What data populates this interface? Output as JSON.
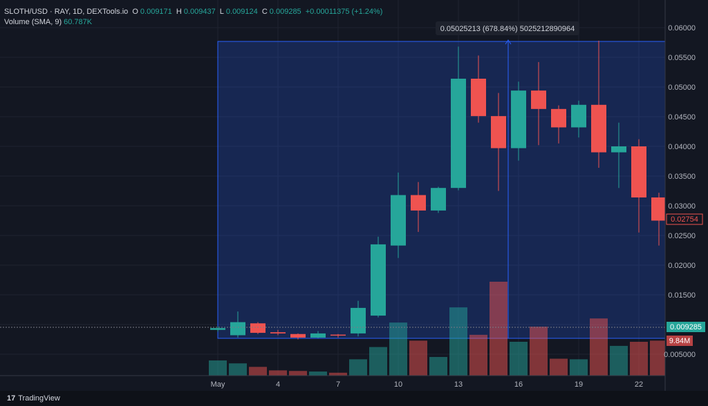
{
  "header": {
    "symbol": "SLOTH/USD",
    "details": "· RAY, 1D, DEXTools.io",
    "o_label": "O",
    "o_value": "0.009171",
    "h_label": "H",
    "h_value": "0.009437",
    "l_label": "L",
    "l_value": "0.009124",
    "c_label": "C",
    "c_value": "0.009285",
    "change": "+0.00011375 (+1.24%)",
    "volume_label": "Volume (SMA, 9)",
    "volume_value": "60.787K"
  },
  "footer": {
    "brand": "TradingView",
    "logo_text": "17"
  },
  "measure": {
    "label": "0.05025213 (678.84%) 5025212890964"
  },
  "price_tags": {
    "last": "0.009285",
    "prev": "0.02754",
    "volume": "9.84M"
  },
  "colors": {
    "up": "#26a69a",
    "down": "#ef5350",
    "bg": "#131722",
    "measure": "#2962ff"
  },
  "chart_data": {
    "type": "candlestick",
    "y_ticks": [
      "0.06000",
      "0.05500",
      "0.05000",
      "0.04500",
      "0.04000",
      "0.03500",
      "0.03000",
      "0.02500",
      "0.02000",
      "0.01500",
      "0.01000",
      "0.005000"
    ],
    "x_ticks": [
      "May",
      "4",
      "7",
      "10",
      "13",
      "16",
      "19",
      "22"
    ],
    "ylim": [
      0,
      0.062
    ],
    "candles": [
      {
        "o": 0.0091,
        "h": 0.0097,
        "l": 0.0088,
        "c": 0.0094
      },
      {
        "o": 0.0082,
        "h": 0.0122,
        "l": 0.0078,
        "c": 0.0104
      },
      {
        "o": 0.0102,
        "h": 0.0104,
        "l": 0.0084,
        "c": 0.0086
      },
      {
        "o": 0.0087,
        "h": 0.0091,
        "l": 0.0082,
        "c": 0.0085
      },
      {
        "o": 0.0084,
        "h": 0.0085,
        "l": 0.0075,
        "c": 0.0078
      },
      {
        "o": 0.0078,
        "h": 0.0089,
        "l": 0.0077,
        "c": 0.0085
      },
      {
        "o": 0.0083,
        "h": 0.0084,
        "l": 0.0078,
        "c": 0.0082
      },
      {
        "o": 0.0085,
        "h": 0.014,
        "l": 0.008,
        "c": 0.0128
      },
      {
        "o": 0.0115,
        "h": 0.0248,
        "l": 0.0112,
        "c": 0.0235
      },
      {
        "o": 0.0233,
        "h": 0.0356,
        "l": 0.0212,
        "c": 0.0318
      },
      {
        "o": 0.0318,
        "h": 0.034,
        "l": 0.0256,
        "c": 0.0292
      },
      {
        "o": 0.0292,
        "h": 0.0332,
        "l": 0.0288,
        "c": 0.033
      },
      {
        "o": 0.033,
        "h": 0.0568,
        "l": 0.0326,
        "c": 0.0514
      },
      {
        "o": 0.0514,
        "h": 0.0553,
        "l": 0.044,
        "c": 0.0451
      },
      {
        "o": 0.0451,
        "h": 0.049,
        "l": 0.0325,
        "c": 0.0397
      },
      {
        "o": 0.0397,
        "h": 0.0509,
        "l": 0.0376,
        "c": 0.0494
      },
      {
        "o": 0.0494,
        "h": 0.0542,
        "l": 0.0402,
        "c": 0.0463
      },
      {
        "o": 0.0463,
        "h": 0.0469,
        "l": 0.0405,
        "c": 0.0432
      },
      {
        "o": 0.0432,
        "h": 0.0477,
        "l": 0.0415,
        "c": 0.047
      },
      {
        "o": 0.047,
        "h": 0.0578,
        "l": 0.0364,
        "c": 0.039
      },
      {
        "o": 0.039,
        "h": 0.044,
        "l": 0.033,
        "c": 0.04
      },
      {
        "o": 0.04,
        "h": 0.0412,
        "l": 0.0255,
        "c": 0.0314
      },
      {
        "o": 0.0314,
        "h": 0.0322,
        "l": 0.0233,
        "c": 0.0275
      }
    ],
    "volumes": [
      26,
      21,
      15,
      9,
      8,
      7,
      5,
      28,
      49,
      91,
      60,
      32,
      117,
      70,
      161,
      58,
      84,
      29,
      28,
      98,
      51,
      58,
      60
    ],
    "volume_dir": [
      "up",
      "up",
      "down",
      "down",
      "down",
      "up",
      "down",
      "up",
      "up",
      "up",
      "down",
      "up",
      "up",
      "down",
      "down",
      "up",
      "down",
      "down",
      "up",
      "down",
      "up",
      "down",
      "down"
    ]
  }
}
